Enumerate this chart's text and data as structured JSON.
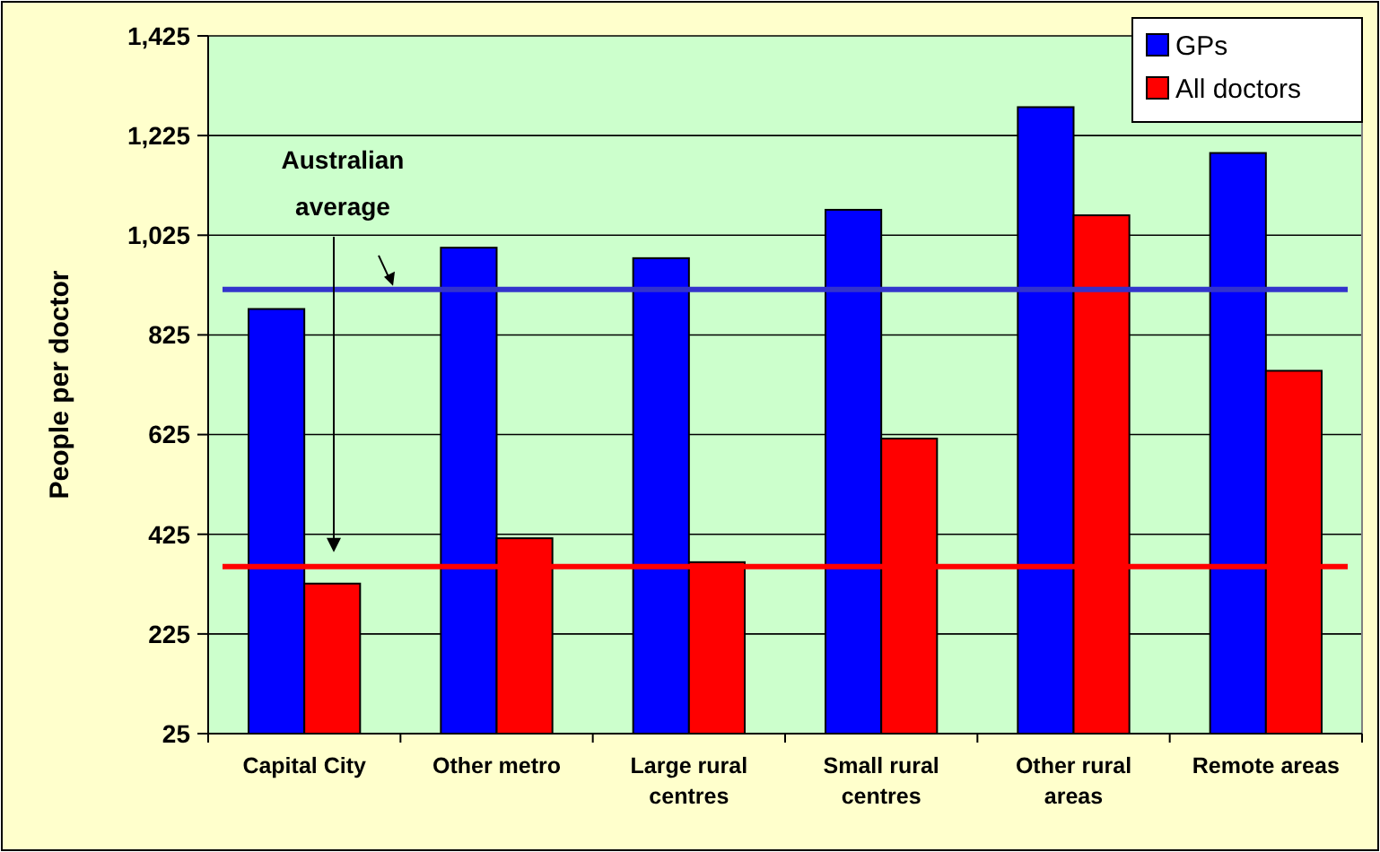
{
  "chart_data": {
    "type": "bar",
    "ylabel": "People per doctor",
    "categories": [
      "Capital City",
      "Other metro",
      "Large rural centres",
      "Small rural centres",
      "Other rural areas",
      "Remote areas"
    ],
    "series": [
      {
        "name": "GPs",
        "color": "#0000ff",
        "values": [
          877,
          1000,
          979,
          1076,
          1282,
          1190
        ]
      },
      {
        "name": "All doctors",
        "color": "#ff0000",
        "values": [
          326,
          417,
          369,
          617,
          1065,
          753
        ]
      }
    ],
    "ylim": [
      25,
      1425
    ],
    "yticks": [
      25,
      225,
      425,
      625,
      825,
      {
        "value": 1025,
        "label": "1,025"
      },
      {
        "value": 1225,
        "label": "1,225"
      },
      {
        "value": 1425,
        "label": "1,425"
      }
    ],
    "grid": "y",
    "legend": "top right",
    "ref_lines": [
      {
        "axis": "y",
        "value": 916,
        "color": "#3333cc"
      },
      {
        "axis": "y",
        "value": 360,
        "color": "#ff0000"
      }
    ],
    "annotations": [
      "Australian average"
    ]
  }
}
